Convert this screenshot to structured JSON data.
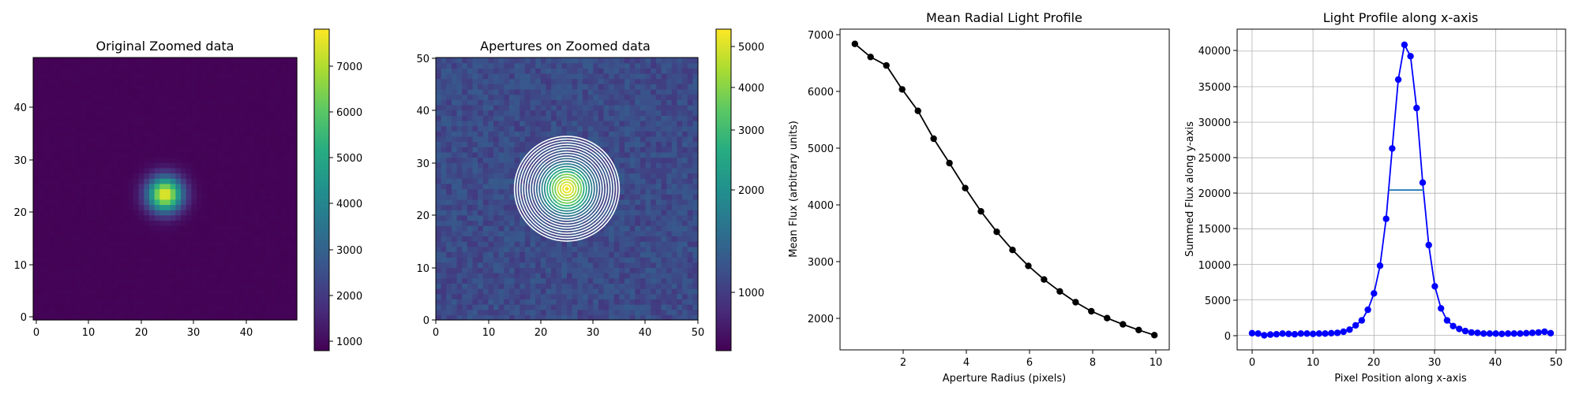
{
  "chart_data": [
    {
      "type": "heatmap",
      "title": "Original Zoomed data",
      "xlim": [
        0,
        50
      ],
      "ylim": [
        0,
        50
      ],
      "xticks": [
        "0",
        "10",
        "20",
        "30",
        "40"
      ],
      "yticks": [
        "0",
        "10",
        "20",
        "30",
        "40"
      ],
      "grid_size": 50,
      "source": {
        "x": 25,
        "y": 24,
        "peak": 7700,
        "background": 850,
        "sigma": 2.3
      },
      "colormap": "viridis",
      "colorbar": {
        "min": 800,
        "max": 7800,
        "scale": "linear",
        "ticks": [
          "1000",
          "2000",
          "3000",
          "4000",
          "5000",
          "6000",
          "7000"
        ]
      }
    },
    {
      "type": "heatmap",
      "title": "Apertures on Zoomed data",
      "xlim": [
        0,
        50
      ],
      "ylim": [
        0,
        50
      ],
      "xticks": [
        "0",
        "10",
        "20",
        "30",
        "40",
        "50"
      ],
      "yticks": [
        "0",
        "10",
        "20",
        "30",
        "40",
        "50"
      ],
      "grid_size": 50,
      "source": {
        "x": 25,
        "y": 25,
        "peak": 5400,
        "background": 950,
        "sigma": 2.3
      },
      "apertures": {
        "center": [
          25,
          25
        ],
        "radii": [
          0.5,
          1,
          1.5,
          2,
          2.5,
          3,
          3.5,
          4,
          4.5,
          5,
          5.5,
          6,
          6.5,
          7,
          7.5,
          8,
          8.5,
          9,
          9.5,
          10
        ],
        "color": "#ffffff"
      },
      "colormap": "viridis",
      "colorbar": {
        "min": 560,
        "max": 5500,
        "scale": "log",
        "ticks": [
          "1000",
          "2000",
          "3000",
          "4000",
          "5000"
        ]
      }
    },
    {
      "type": "line",
      "title": "Mean Radial Light Profile",
      "xlabel": "Aperture Radius (pixels)",
      "ylabel": "Mean Flux (arbitrary units)",
      "xlim": [
        0.03,
        10.47
      ],
      "ylim": [
        1430,
        7080
      ],
      "xticks": [
        "2",
        "4",
        "6",
        "8",
        "10"
      ],
      "yticks": [
        "2000",
        "3000",
        "4000",
        "5000",
        "6000",
        "7000"
      ],
      "color": "#000000",
      "grid": false,
      "x": [
        0.5,
        1,
        1.5,
        2,
        2.5,
        3,
        3.5,
        4,
        4.5,
        5,
        5.5,
        6,
        6.5,
        7,
        7.5,
        8,
        8.5,
        9,
        9.5,
        10
      ],
      "y": [
        6820,
        6590,
        6440,
        6020,
        5640,
        5150,
        4720,
        4280,
        3870,
        3510,
        3190,
        2910,
        2670,
        2460,
        2270,
        2110,
        1990,
        1880,
        1780,
        1690
      ]
    },
    {
      "type": "line",
      "title": "Light Profile along x-axis",
      "xlabel": "Pixel Position along x-axis",
      "ylabel": "Summed Flux along y-axis",
      "xlim": [
        -2.45,
        51.45
      ],
      "ylim": [
        -2050,
        43100
      ],
      "xticks": [
        "0",
        "10",
        "20",
        "30",
        "40",
        "50"
      ],
      "yticks": [
        "0",
        "5000",
        "10000",
        "15000",
        "20000",
        "25000",
        "30000",
        "35000",
        "40000"
      ],
      "color": "#0000ff",
      "grid": true,
      "x": [
        0,
        1,
        2,
        3,
        4,
        5,
        6,
        7,
        8,
        9,
        10,
        11,
        12,
        13,
        14,
        15,
        16,
        17,
        18,
        19,
        20,
        21,
        22,
        23,
        24,
        25,
        26,
        27,
        28,
        29,
        30,
        31,
        32,
        33,
        34,
        35,
        36,
        37,
        38,
        39,
        40,
        41,
        42,
        43,
        44,
        45,
        46,
        47,
        48,
        49
      ],
      "y": [
        300,
        250,
        0,
        100,
        150,
        250,
        200,
        150,
        250,
        250,
        200,
        250,
        250,
        300,
        350,
        500,
        800,
        1400,
        2100,
        3600,
        5900,
        9800,
        16400,
        26300,
        36000,
        40900,
        39300,
        32000,
        21500,
        12700,
        6900,
        3800,
        2100,
        1300,
        900,
        600,
        400,
        350,
        250,
        250,
        250,
        200,
        250,
        250,
        250,
        300,
        350,
        400,
        500,
        300
      ],
      "hline": {
        "y": 20450,
        "xmin": 22.4,
        "xmax": 28.2,
        "color": "#1f77b4"
      }
    }
  ]
}
